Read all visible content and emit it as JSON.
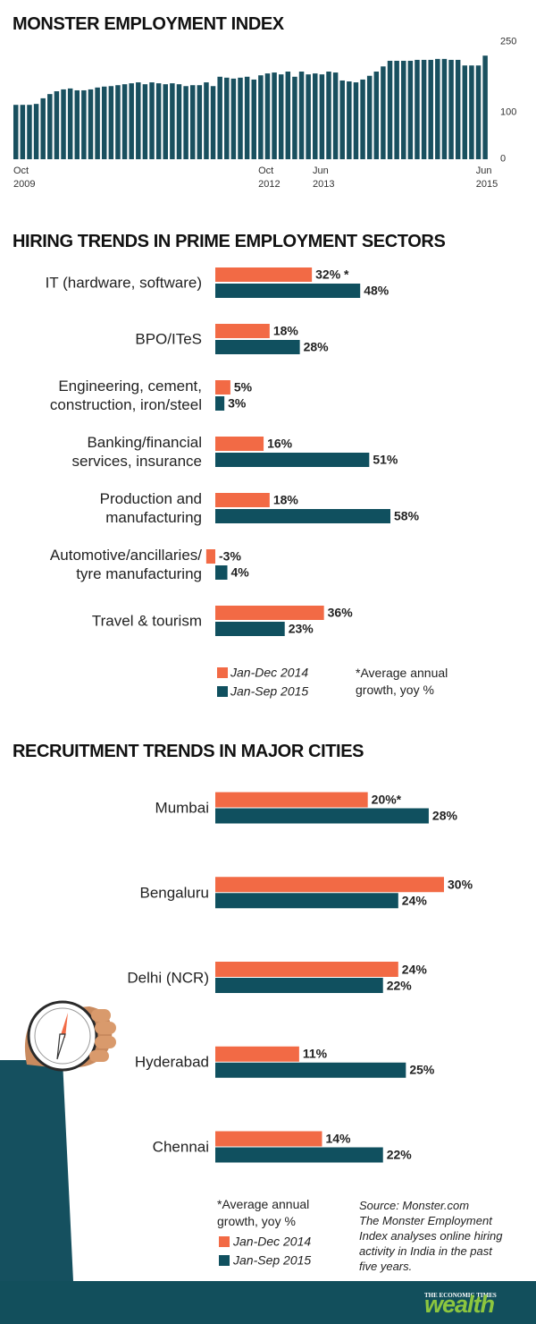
{
  "chart_data": [
    {
      "type": "bar",
      "orientation": "vertical",
      "title": "MONSTER EMPLOYMENT INDEX",
      "color": "#19505f",
      "categories": [
        "Oct\n2009",
        null,
        null,
        null,
        null,
        null,
        null,
        null,
        null,
        null,
        null,
        null,
        null,
        null,
        null,
        null,
        null,
        null,
        null,
        null,
        null,
        null,
        null,
        null,
        null,
        null,
        null,
        null,
        null,
        null,
        null,
        null,
        null,
        null,
        null,
        null,
        "Oct\n2012",
        null,
        null,
        null,
        null,
        null,
        null,
        null,
        "Jun\n2013",
        null,
        null,
        null,
        null,
        null,
        null,
        null,
        null,
        null,
        null,
        null,
        null,
        null,
        null,
        null,
        null,
        null,
        null,
        null,
        null,
        null,
        null,
        null,
        "Jun\n2015",
        null
      ],
      "values": [
        116,
        116,
        116,
        118,
        130,
        139,
        145,
        149,
        151,
        147,
        147,
        149,
        153,
        155,
        156,
        158,
        160,
        162,
        164,
        160,
        164,
        162,
        160,
        162,
        160,
        156,
        158,
        158,
        164,
        156,
        176,
        174,
        172,
        174,
        176,
        170,
        179,
        183,
        185,
        181,
        187,
        176,
        187,
        181,
        183,
        181,
        187,
        185,
        168,
        166,
        164,
        170,
        178,
        187,
        198,
        210,
        210,
        210,
        210,
        212,
        212,
        212,
        214,
        214,
        212,
        212,
        200,
        200,
        200,
        221
      ],
      "ylim": [
        0,
        250
      ],
      "yticks": [
        0,
        100,
        250
      ],
      "grid": false
    },
    {
      "type": "bar",
      "orientation": "horizontal",
      "title": "HIRING TRENDS IN PRIME EMPLOYMENT SECTORS",
      "categories": [
        "IT (hardware, software)",
        "BPO/ITeS",
        "Engineering, cement,\nconstruction, iron/steel",
        "Banking/financial\nservices, insurance",
        "Production and\nmanufacturing",
        "Automotive/ancillaries/\ntyre manufacturing",
        "Travel & tourism"
      ],
      "series": [
        {
          "name": "Jan-Dec 2014",
          "color": "#f26a45",
          "values": [
            32,
            18,
            5,
            16,
            18,
            -3,
            36
          ],
          "value_labels": [
            "32% *",
            "18%",
            "5%",
            "16%",
            "18%",
            "-3%",
            "36%"
          ]
        },
        {
          "name": "Jan-Sep 2015",
          "color": "#10505f",
          "values": [
            48,
            28,
            3,
            51,
            58,
            4,
            23
          ],
          "value_labels": [
            "48%",
            "28%",
            "3%",
            "51%",
            "58%",
            "4%",
            "23%"
          ]
        }
      ],
      "note": "*Average annual\ngrowth, yoy %"
    },
    {
      "type": "bar",
      "orientation": "horizontal",
      "title": "RECRUITMENT TRENDS IN MAJOR CITIES",
      "categories": [
        "Mumbai",
        "Bengaluru",
        "Delhi (NCR)",
        "Hyderabad",
        "Chennai"
      ],
      "series": [
        {
          "name": "Jan-Dec 2014",
          "color": "#f26a45",
          "values": [
            20,
            30,
            24,
            11,
            14
          ],
          "value_labels": [
            "20%*",
            "30%",
            "24%",
            "11%",
            "14%"
          ]
        },
        {
          "name": "Jan-Sep 2015",
          "color": "#10505f",
          "values": [
            28,
            24,
            22,
            25,
            22
          ],
          "value_labels": [
            "28%",
            "24%",
            "22%",
            "25%",
            "22%"
          ]
        }
      ],
      "note": "*Average annual\ngrowth, yoy %"
    }
  ],
  "source": "Source: Monster.com\nThe Monster Employment\nIndex analyses online hiring\nactivity in India in the past\nfive years.",
  "branding": {
    "publisher": "THE ECONOMIC TIMES",
    "section": "wealth"
  }
}
